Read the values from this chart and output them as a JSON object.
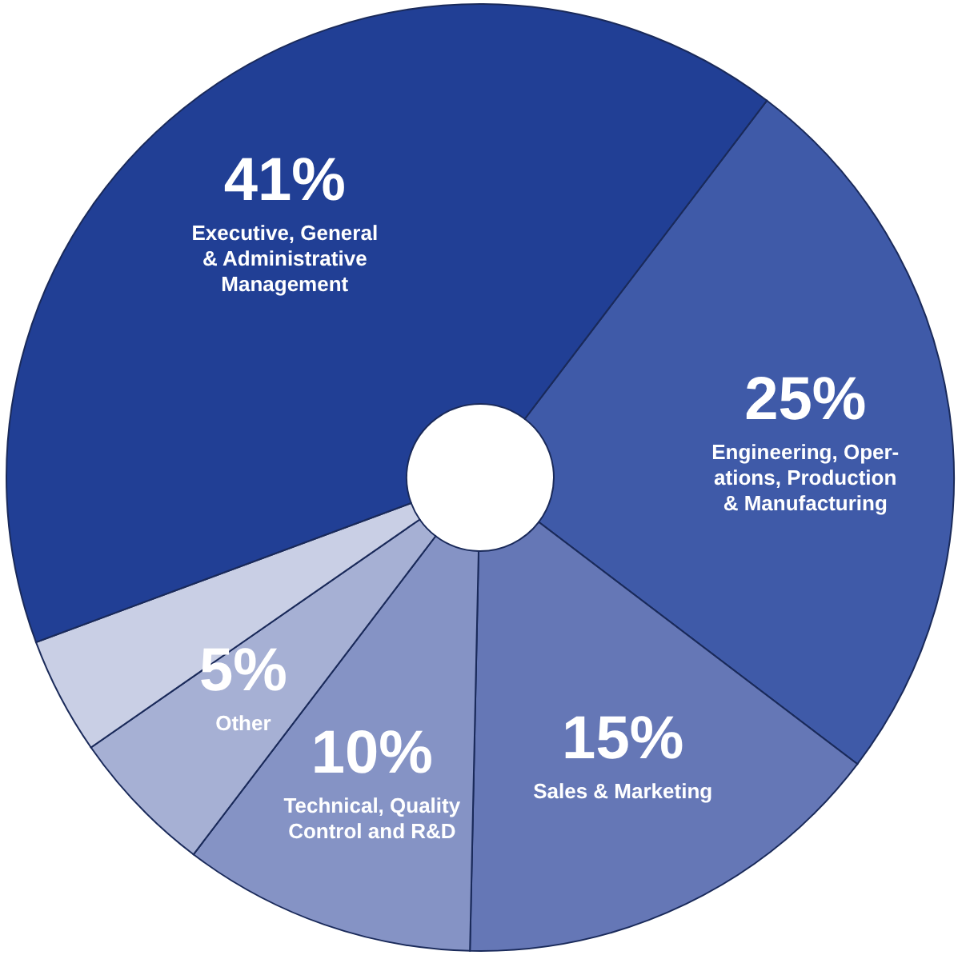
{
  "chart_data": {
    "type": "donut",
    "categories": [
      "Engineering, Oper-\nations, Production\n& Manufacturing",
      "Sales & Marketing",
      "Technical, Quality\nControl and R&D",
      "Other",
      null,
      "Executive, General\n& Administrative\nManagement"
    ],
    "values": [
      25,
      15,
      10,
      5,
      4,
      41
    ],
    "value_labels": [
      "25%",
      "15%",
      "10%",
      "5%",
      null,
      "41%"
    ],
    "colors": [
      "#3f5aa8",
      "#6577b6",
      "#8593c5",
      "#a6b0d4",
      "#c9cfe5",
      "#213f95"
    ]
  }
}
